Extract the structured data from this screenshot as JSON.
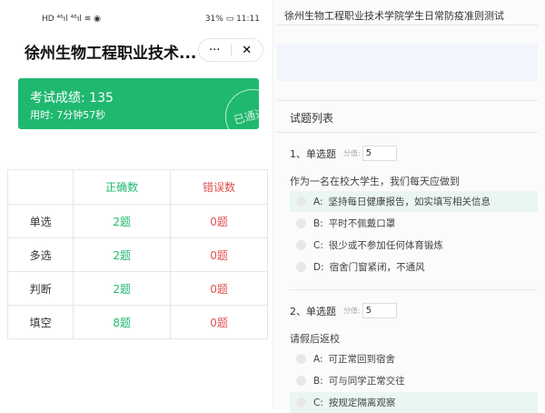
{
  "status_bar": {
    "left": "HD ⁴⁶ıl ⁴⁶ıl ≋ ◉",
    "battery": "31%",
    "time": "11:11"
  },
  "header": {
    "title": "徐州生物工程职业技术...",
    "more": "···",
    "close": "✕"
  },
  "result": {
    "score_label": "考试成绩: 135",
    "time_label": "用时:  7分钟57秒",
    "stamp": "已通过",
    "color": "#1fb86f"
  },
  "stats": {
    "headers": [
      "",
      "正确数",
      "错误数"
    ],
    "rows": [
      {
        "type": "单选",
        "correct": "2题",
        "wrong": "0题"
      },
      {
        "type": "多选",
        "correct": "2题",
        "wrong": "0题"
      },
      {
        "type": "判断",
        "correct": "2题",
        "wrong": "0题"
      },
      {
        "type": "填空",
        "correct": "8题",
        "wrong": "0题"
      }
    ]
  },
  "exam": {
    "title": "徐州生物工程职业技术学院学生日常防疫准则测试",
    "list_title": "试题列表",
    "questions": [
      {
        "head": "1、单选题",
        "score_label": "分值:",
        "score": "5",
        "text": "作为一名在校大学生，我们每天应做到",
        "options": [
          {
            "key": "A:",
            "text": "坚持每日健康报告，如实填写相关信息",
            "selected": true
          },
          {
            "key": "B:",
            "text": "平时不佩戴口罩"
          },
          {
            "key": "C:",
            "text": "很少或不参加任何体育锻炼"
          },
          {
            "key": "D:",
            "text": "宿舍门窗紧闭，不通风"
          }
        ]
      },
      {
        "head": "2、单选题",
        "score_label": "分值:",
        "score": "5",
        "text": "请假后返校",
        "options": [
          {
            "key": "A:",
            "text": "可正常回到宿舍"
          },
          {
            "key": "B:",
            "text": "可与同学正常交往"
          },
          {
            "key": "C:",
            "text": "按规定隔离观察",
            "selected": true
          }
        ]
      }
    ]
  }
}
